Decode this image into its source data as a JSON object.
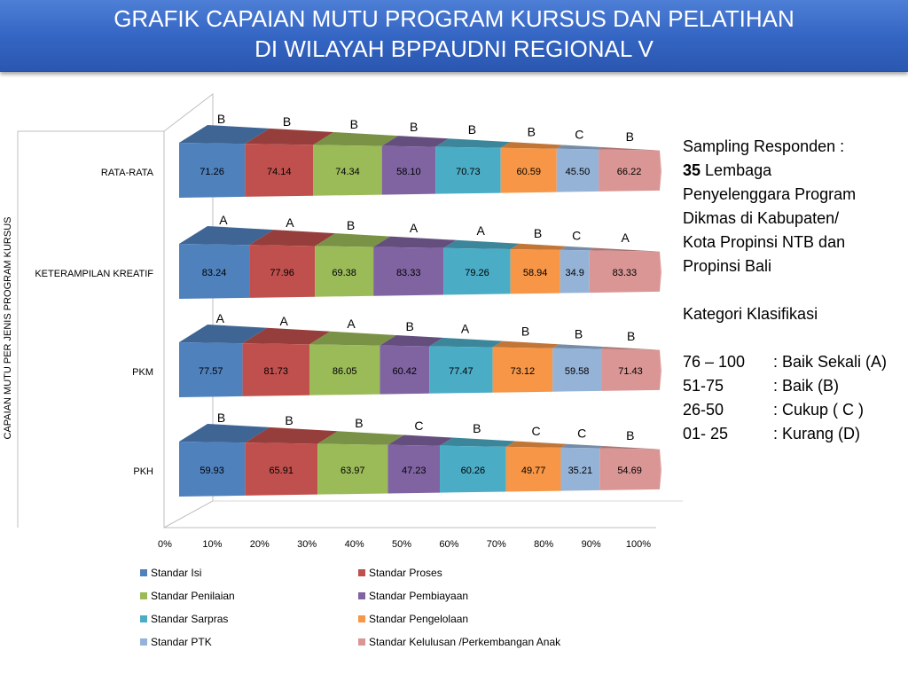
{
  "title": {
    "line1": "GRAFIK CAPAIAN MUTU PROGRAM KURSUS DAN PELATIHAN",
    "line2": "DI WILAYAH BPPAUDNI REGIONAL V"
  },
  "side_panel": {
    "sampling_lines": [
      "Sampling Responden   :",
      "Lembaga",
      "Penyelenggara Program",
      "Dikmas di Kabupaten/",
      "Kota  Propinsi NTB dan",
      "Propinsi Bali"
    ],
    "sampling_count": "35",
    "kategori_title": "Kategori Klasifikasi",
    "kategori": [
      {
        "range": "76 – 100",
        "label": ": Baik Sekali (A)"
      },
      {
        "range": "51-75",
        "label": ": Baik (B)"
      },
      {
        "range": "26-50",
        "label": ": Cukup ( C )"
      },
      {
        "range": "01- 25",
        "label": ": Kurang (D)"
      }
    ]
  },
  "chart_data": {
    "type": "bar",
    "orientation": "horizontal",
    "stacking": "100%",
    "style": "3d-cone",
    "ylabel": "CAPAIAN MUTU PER JENIS PROGRAM KURSUS",
    "xlabel": "",
    "x_ticks": [
      "0%",
      "10%",
      "20%",
      "30%",
      "40%",
      "50%",
      "60%",
      "70%",
      "80%",
      "90%",
      "100%"
    ],
    "xlim": [
      0,
      100
    ],
    "legend_position": "bottom",
    "categories": [
      "RATA-RATA",
      "KETERAMPILAN KREATIF",
      "PKM",
      "PKH"
    ],
    "series": [
      {
        "name": "Standar Isi",
        "color": "#4F81BD",
        "values": [
          71.26,
          83.24,
          77.57,
          59.93
        ],
        "grades": [
          "B",
          "A",
          "A",
          "B"
        ]
      },
      {
        "name": "Standar Proses",
        "color": "#C0504D",
        "values": [
          74.14,
          77.96,
          81.73,
          65.91
        ],
        "grades": [
          "B",
          "A",
          "A",
          "B"
        ]
      },
      {
        "name": "Standar Penilaian",
        "color": "#9BBB59",
        "values": [
          74.34,
          69.38,
          86.05,
          63.97
        ],
        "grades": [
          "B",
          "B",
          "A",
          "B"
        ]
      },
      {
        "name": "Standar Pembiayaan",
        "color": "#8064A2",
        "values": [
          58.1,
          83.33,
          60.42,
          47.23
        ],
        "grades": [
          "B",
          "A",
          "B",
          "C"
        ]
      },
      {
        "name": "Standar Sarpras",
        "color": "#4BACC6",
        "values": [
          70.73,
          79.26,
          77.47,
          60.26
        ],
        "grades": [
          "B",
          "A",
          "A",
          "B"
        ]
      },
      {
        "name": "Standar Pengelolaan",
        "color": "#F79646",
        "values": [
          60.59,
          58.94,
          73.12,
          49.77
        ],
        "grades": [
          "B",
          "B",
          "B",
          "C"
        ]
      },
      {
        "name": "Standar PTK",
        "color": "#95B3D7",
        "values": [
          45.5,
          34.9,
          59.58,
          35.21
        ],
        "grades": [
          "C",
          "C",
          "B",
          "C"
        ]
      },
      {
        "name": "Standar Kelulusan /Perkembangan Anak",
        "color": "#D99694",
        "values": [
          66.22,
          83.33,
          71.43,
          54.69
        ],
        "grades": [
          "B",
          "A",
          "B",
          "B"
        ]
      }
    ],
    "data_labels": [
      [
        "71.26",
        "74.14",
        "74.34",
        "58.10",
        "70.73",
        "60.59",
        "45.50",
        "66.22"
      ],
      [
        "83.24",
        "77.96",
        "69.38",
        "83.33",
        "79.26",
        "58.94",
        "34.9",
        "83.33"
      ],
      [
        "77.57",
        "81.73",
        "86.05",
        "60.42",
        "77.47",
        "73.12",
        "59.58",
        "71.43"
      ],
      [
        "59.93",
        "65.91",
        "63.97",
        "47.23",
        "60.26",
        "49.77",
        "35.21",
        "54.69"
      ]
    ]
  }
}
